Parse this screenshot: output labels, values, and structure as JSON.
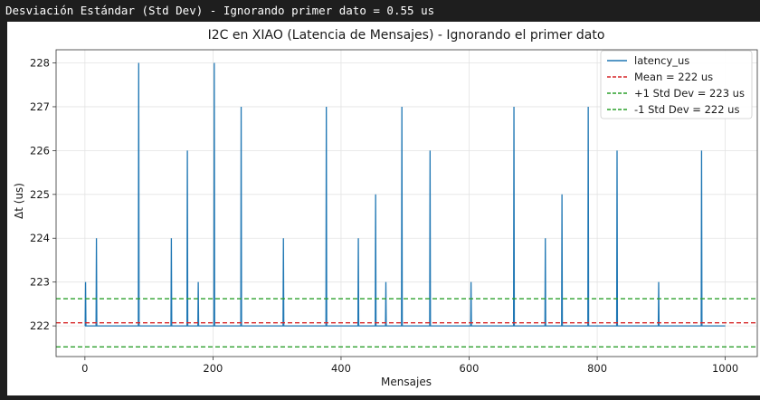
{
  "console": {
    "text": "Desviación Estándar (Std Dev) - Ignorando primer dato = 0.55 us"
  },
  "chart_data": {
    "type": "line",
    "title": "I2C en XIAO (Latencia de Mensajes) - Ignorando el primer dato",
    "xlabel": "Mensajes",
    "ylabel": "Δt (us)",
    "xlim": [
      -45,
      1050
    ],
    "ylim": [
      221.3,
      228.3
    ],
    "xticks": [
      0,
      200,
      400,
      600,
      800,
      1000
    ],
    "yticks": [
      222,
      223,
      224,
      225,
      226,
      227,
      228
    ],
    "grid": true,
    "legend_position": "top-right",
    "baseline": 222,
    "x_end": 1000,
    "spikes": [
      {
        "x": 1,
        "y": 223
      },
      {
        "x": 18,
        "y": 224
      },
      {
        "x": 84,
        "y": 228
      },
      {
        "x": 135,
        "y": 224
      },
      {
        "x": 160,
        "y": 226
      },
      {
        "x": 177,
        "y": 223
      },
      {
        "x": 202,
        "y": 228
      },
      {
        "x": 244,
        "y": 227
      },
      {
        "x": 310,
        "y": 224
      },
      {
        "x": 377,
        "y": 227
      },
      {
        "x": 427,
        "y": 224
      },
      {
        "x": 454,
        "y": 225
      },
      {
        "x": 470,
        "y": 223
      },
      {
        "x": 495,
        "y": 227
      },
      {
        "x": 539,
        "y": 226
      },
      {
        "x": 603,
        "y": 223
      },
      {
        "x": 670,
        "y": 227
      },
      {
        "x": 719,
        "y": 224
      },
      {
        "x": 745,
        "y": 225
      },
      {
        "x": 786,
        "y": 227
      },
      {
        "x": 831,
        "y": 226
      },
      {
        "x": 896,
        "y": 223
      },
      {
        "x": 963,
        "y": 226
      }
    ],
    "series": [
      {
        "name": "latency_us",
        "color": "#1f77b4",
        "style": "solid"
      },
      {
        "name": "Mean = 222 us",
        "value": 222.07,
        "color": "#d62728",
        "style": "dashed"
      },
      {
        "name": "+1 Std Dev = 223 us",
        "value": 222.62,
        "color": "#2ca02c",
        "style": "dashed"
      },
      {
        "name": "-1 Std Dev = 222 us",
        "value": 221.52,
        "color": "#2ca02c",
        "style": "dashed"
      }
    ]
  }
}
